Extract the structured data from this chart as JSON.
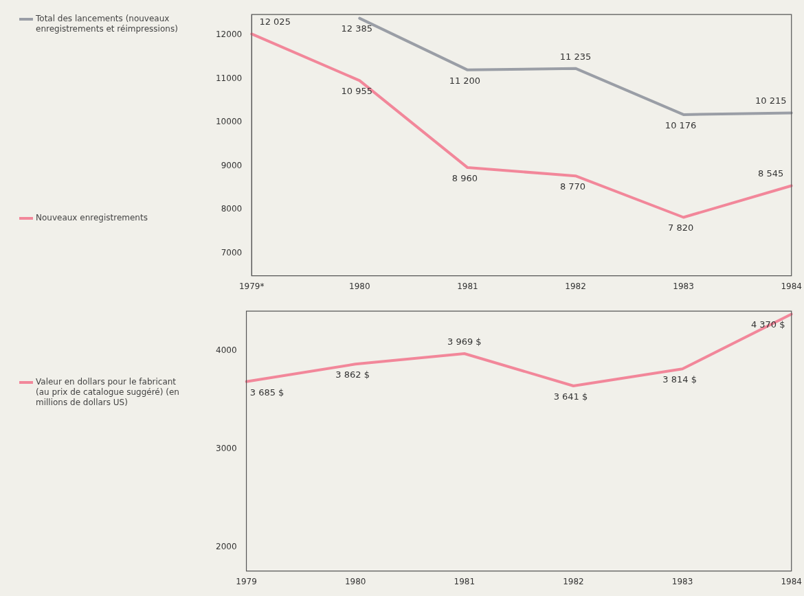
{
  "chart_data": [
    {
      "type": "line",
      "categories": [
        "1979*",
        "1980",
        "1981",
        "1982",
        "1983",
        "1984"
      ],
      "ylim": [
        6480,
        12470
      ],
      "yticks": [
        7000,
        8000,
        9000,
        10000,
        11000,
        12000
      ],
      "grid": false,
      "legend": "left",
      "marker": "none",
      "line_style": "solid",
      "series": [
        {
          "name": "Total des lancements (nouveaux enregistrements et réimpressions)",
          "color": "#9a9ea6",
          "values": [
            null,
            12385,
            11200,
            11235,
            10176,
            10215
          ],
          "value_labels": [
            null,
            "12 385",
            "11 200",
            "11 235",
            "10 176",
            "10 215"
          ]
        },
        {
          "name": "Nouveaux enregistrements",
          "color": "#f2879a",
          "values": [
            12025,
            10955,
            8960,
            8770,
            7820,
            8545
          ],
          "value_labels": [
            "12 025",
            "10 955",
            "8 960",
            "8 770",
            "7 820",
            "8 545"
          ]
        }
      ]
    },
    {
      "type": "line",
      "categories": [
        "1979",
        "1980",
        "1981",
        "1982",
        "1983",
        "1984"
      ],
      "ylim": [
        1760,
        4400
      ],
      "yticks": [
        2000,
        3000,
        4000
      ],
      "grid": false,
      "legend": "left",
      "marker": "none",
      "line_style": "solid",
      "series": [
        {
          "name": "Valeur en dollars pour le fabricant (au prix de catalogue suggéré) (en millions de dollars US)",
          "color": "#f2879a",
          "values": [
            3685,
            3862,
            3969,
            3641,
            3814,
            4370
          ],
          "value_labels": [
            "3 685 $",
            "3 862 $",
            "3 969 $",
            "3 641 $",
            "3 814 $",
            "4 370 $"
          ]
        }
      ]
    }
  ]
}
